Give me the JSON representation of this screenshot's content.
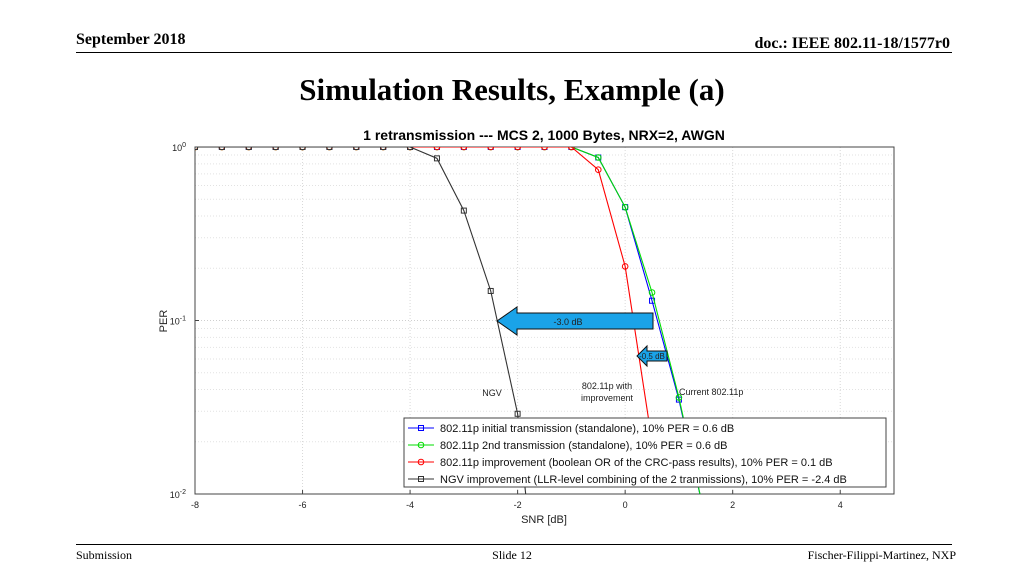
{
  "header": {
    "date": "September 2018",
    "doc": "doc.: IEEE 802.11-18/1577r0"
  },
  "slide_title": "Simulation Results, Example (a)",
  "footer": {
    "left": "Submission",
    "center": "Slide 12",
    "right": "Fischer-Filippi-Martinez, NXP"
  },
  "colors": {
    "initial": "#0000ff",
    "second": "#00dd00",
    "improvement": "#ff0000",
    "ngv": "#333333",
    "arrow_fill": "#1aa3e8"
  },
  "chart_data": {
    "type": "line",
    "title": "1 retransmission --- MCS 2, 1000 Bytes, NRX=2, AWGN",
    "xlabel": "SNR [dB]",
    "ylabel": "PER",
    "xlim": [
      -8,
      5
    ],
    "ylim": [
      0.01,
      1
    ],
    "yscale": "log",
    "xticks": [
      -8,
      -6,
      -4,
      -2,
      0,
      2,
      4
    ],
    "xtick_labels": [
      "-8",
      "-6",
      "-4",
      "-2",
      "0",
      "2",
      "4"
    ],
    "yticks": [
      1,
      0.1,
      0.01
    ],
    "ytick_labels": [
      {
        "base": "10",
        "exp": "0"
      },
      {
        "base": "10",
        "exp": "-1"
      },
      {
        "base": "10",
        "exp": "-2"
      }
    ],
    "grid": true,
    "legend_position": "bottom-right",
    "series": [
      {
        "name": "802.11p initial transmission (standalone), 10% PER = 0.6 dB",
        "key": "initial",
        "marker": "square",
        "x": [
          -8,
          -7.5,
          -7,
          -6.5,
          -6,
          -5.5,
          -5,
          -4.5,
          -4,
          -3.5,
          -3,
          -2.5,
          -2,
          -1.5,
          -1,
          -0.5,
          0,
          0.5,
          1,
          1.5
        ],
        "y": [
          1,
          1,
          1,
          1,
          1,
          1,
          1,
          1,
          1,
          1,
          1,
          1,
          1,
          1,
          1,
          0.87,
          0.45,
          0.13,
          0.035,
          0.007
        ]
      },
      {
        "name": "802.11p 2nd transmission (standalone), 10% PER = 0.6 dB",
        "key": "second",
        "marker": "circle",
        "x": [
          -8,
          -7.5,
          -7,
          -6.5,
          -6,
          -5.5,
          -5,
          -4.5,
          -4,
          -3.5,
          -3,
          -2.5,
          -2,
          -1.5,
          -1,
          -0.5,
          0,
          0.5,
          1,
          1.5
        ],
        "y": [
          1,
          1,
          1,
          1,
          1,
          1,
          1,
          1,
          1,
          1,
          1,
          1,
          1,
          1,
          1,
          0.87,
          0.45,
          0.145,
          0.036,
          0.007
        ]
      },
      {
        "name": "802.11p improvement (boolean OR of the CRC-pass results), 10% PER = 0.1 dB",
        "key": "improvement",
        "marker": "circle",
        "x": [
          -8,
          -7.5,
          -7,
          -6.5,
          -6,
          -5.5,
          -5,
          -4.5,
          -4,
          -3.5,
          -3,
          -2.5,
          -2,
          -1.5,
          -1,
          -0.5,
          0,
          0.5
        ],
        "y": [
          1,
          1,
          1,
          1,
          1,
          1,
          1,
          1,
          1,
          1,
          1,
          1,
          1,
          1,
          1,
          0.74,
          0.205,
          0.02
        ]
      },
      {
        "name": "NGV improvement (LLR-level combining of the 2 tranmissions), 10% PER = -2.4 dB",
        "key": "ngv",
        "marker": "square",
        "x": [
          -8,
          -7.5,
          -7,
          -6.5,
          -6,
          -5.5,
          -5,
          -4.5,
          -4,
          -3.5,
          -3,
          -2.5,
          -2,
          -1.8
        ],
        "y": [
          1,
          1,
          1,
          1,
          1,
          1,
          1,
          1,
          1,
          0.86,
          0.43,
          0.148,
          0.029,
          0.007
        ]
      }
    ],
    "annotations": {
      "arrow_big_label": "-3.0 dB",
      "arrow_small_label": "-0.5 dB",
      "label_ngv": "NGV",
      "label_improvement_line1": "802.11p with",
      "label_improvement_line2": "improvement",
      "label_current": "Current 802.11p"
    }
  }
}
